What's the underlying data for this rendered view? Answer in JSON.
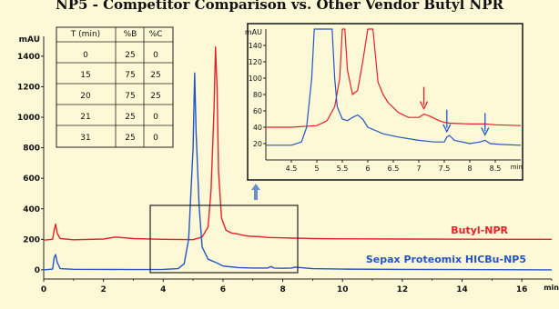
{
  "title": "NP5 - Competitor Comparison vs. Other Vendor Butyl NPR",
  "colors": {
    "background": "#fdf8d6",
    "butyl_npr": "#e8202a",
    "sepax_np5": "#2455c8",
    "annotation_arrow_red": "#e8202a",
    "annotation_arrow_blue": "#2455c8",
    "zoom_arrow": "#6a8fd0"
  },
  "chart_data": [
    {
      "type": "line",
      "ylabel": "mAU",
      "xlabel": "min",
      "xlim": [
        0,
        17
      ],
      "ylim": [
        -60,
        1530
      ],
      "xticks": [
        0,
        2,
        4,
        6,
        8,
        10,
        12,
        14,
        16
      ],
      "yticks": [
        0,
        200,
        400,
        600,
        800,
        1000,
        1200,
        1400
      ],
      "grid": false,
      "series": [
        {
          "name": "Butyl-NPR",
          "color": "#e8202a",
          "x": [
            0,
            0.3,
            0.35,
            0.4,
            0.45,
            0.55,
            1,
            2,
            2.4,
            3,
            4,
            5,
            5.3,
            5.5,
            5.6,
            5.7,
            5.75,
            5.8,
            5.85,
            5.95,
            6.1,
            6.3,
            6.5,
            6.7,
            6.9,
            7.2,
            7.5,
            8,
            8.3,
            8.8,
            9,
            10,
            12,
            14,
            16,
            17
          ],
          "y": [
            195,
            200,
            260,
            300,
            240,
            205,
            197,
            202,
            215,
            205,
            200,
            198,
            215,
            280,
            520,
            1050,
            1460,
            1200,
            650,
            340,
            260,
            240,
            235,
            225,
            220,
            218,
            212,
            210,
            208,
            206,
            205,
            203,
            202,
            201,
            200,
            200
          ]
        },
        {
          "name": "Sepax Proteomix HICBu-NP5",
          "color": "#2455c8",
          "x": [
            0,
            0.3,
            0.35,
            0.4,
            0.45,
            0.55,
            1,
            2,
            3,
            4,
            4.5,
            4.7,
            4.85,
            5,
            5.05,
            5.1,
            5.2,
            5.3,
            5.5,
            5.8,
            6,
            6.5,
            7,
            7.5,
            7.6,
            7.7,
            8,
            8.3,
            8.4,
            9,
            10,
            12,
            14,
            16,
            17
          ],
          "y": [
            0,
            5,
            80,
            100,
            50,
            8,
            4,
            3,
            2,
            3,
            8,
            40,
            200,
            800,
            1290,
            900,
            420,
            150,
            70,
            45,
            25,
            15,
            12,
            12,
            22,
            12,
            10,
            12,
            18,
            8,
            5,
            3,
            2,
            1,
            0
          ]
        }
      ],
      "annotations": [
        "Butyl-NPR",
        "Sepax Proteomix HICBu-NP5"
      ]
    },
    {
      "type": "line",
      "ylabel": "mAU",
      "xlabel": "min",
      "xlim": [
        4,
        9
      ],
      "ylim": [
        0,
        160
      ],
      "xticks": [
        4.5,
        5,
        5.5,
        6,
        6.5,
        7,
        7.5,
        8,
        8.5
      ],
      "xtick_labels": [
        "4.5",
        "5",
        "5.5",
        "6",
        "6.5",
        "7",
        "7.5",
        "8",
        "8.5"
      ],
      "yticks": [
        20,
        40,
        60,
        80,
        100,
        120,
        140
      ],
      "grid": false,
      "series": [
        {
          "name": "Butyl-NPR",
          "color": "#e8202a",
          "x": [
            4,
            4.5,
            5,
            5.2,
            5.35,
            5.45,
            5.5,
            5.55,
            5.6,
            5.7,
            5.8,
            5.9,
            6,
            6.1,
            6.2,
            6.3,
            6.4,
            6.6,
            6.8,
            7,
            7.1,
            7.2,
            7.4,
            7.5,
            7.6,
            8,
            8.3,
            8.5,
            9
          ],
          "y": [
            40,
            40,
            42,
            48,
            65,
            100,
            160,
            160,
            110,
            80,
            85,
            120,
            160,
            160,
            95,
            80,
            70,
            58,
            52,
            52,
            56,
            54,
            48,
            46,
            45,
            44,
            44,
            43,
            42
          ]
        },
        {
          "name": "Sepax Proteomix HICBu-NP5",
          "color": "#2455c8",
          "x": [
            4,
            4.5,
            4.7,
            4.8,
            4.9,
            4.95,
            5.3,
            5.35,
            5.4,
            5.5,
            5.6,
            5.7,
            5.8,
            5.9,
            6,
            6.3,
            6.6,
            7,
            7.3,
            7.5,
            7.55,
            7.6,
            7.7,
            8,
            8.2,
            8.3,
            8.4,
            8.6,
            9
          ],
          "y": [
            18,
            18,
            22,
            40,
            100,
            160,
            160,
            100,
            65,
            50,
            48,
            52,
            55,
            50,
            40,
            32,
            28,
            24,
            22,
            22,
            28,
            30,
            24,
            20,
            22,
            24,
            20,
            19,
            18
          ]
        }
      ],
      "markers": [
        {
          "series": "Butyl-NPR",
          "x": 7.1
        },
        {
          "series": "Sepax Proteomix HICBu-NP5",
          "x": 7.55
        },
        {
          "series": "Sepax Proteomix HICBu-NP5",
          "x": 8.3
        }
      ]
    }
  ],
  "gradient_table": {
    "headers": [
      "T (min)",
      "%B",
      "%C"
    ],
    "rows": [
      [
        "0",
        "25",
        "0"
      ],
      [
        "15",
        "75",
        "25"
      ],
      [
        "20",
        "75",
        "25"
      ],
      [
        "21",
        "25",
        "0"
      ],
      [
        "31",
        "25",
        "0"
      ]
    ]
  }
}
